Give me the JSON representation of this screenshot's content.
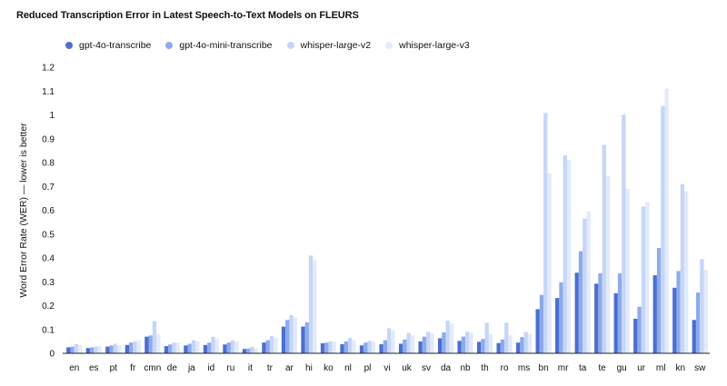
{
  "chart_data": {
    "type": "bar",
    "title": "Reduced Transcription Error in Latest Speech-to-Text Models on FLEURS",
    "xlabel": "",
    "ylabel": "Word Error Rate (WER) — lower is better",
    "ylim": [
      0,
      1.2
    ],
    "yticks": [
      "0",
      "0.1",
      "0.2",
      "0.3",
      "0.4",
      "0.5",
      "0.6",
      "0.7",
      "0.8",
      "0.9",
      "1",
      "1.1",
      "1.2"
    ],
    "grid": false,
    "legend": "top-left",
    "categories": [
      "en",
      "es",
      "pt",
      "fr",
      "cmn",
      "de",
      "ja",
      "id",
      "ru",
      "it",
      "tr",
      "ar",
      "hi",
      "ko",
      "nl",
      "pl",
      "vi",
      "uk",
      "sv",
      "da",
      "nb",
      "th",
      "ro",
      "ms",
      "bn",
      "mr",
      "ta",
      "te",
      "gu",
      "ur",
      "ml",
      "kn",
      "sw"
    ],
    "series": [
      {
        "name": "gpt-4o-transcribe",
        "color": "#4a6fcf",
        "values": [
          0.025,
          0.022,
          0.028,
          0.035,
          0.07,
          0.03,
          0.033,
          0.035,
          0.037,
          0.018,
          0.045,
          0.112,
          0.112,
          0.042,
          0.038,
          0.033,
          0.038,
          0.04,
          0.05,
          0.063,
          0.052,
          0.048,
          0.043,
          0.045,
          0.185,
          0.232,
          0.338,
          0.292,
          0.252,
          0.145,
          0.327,
          0.275,
          0.14
        ]
      },
      {
        "name": "gpt-4o-mini-transcribe",
        "color": "#8eaaee",
        "values": [
          0.028,
          0.025,
          0.033,
          0.045,
          0.075,
          0.037,
          0.04,
          0.045,
          0.045,
          0.02,
          0.055,
          0.14,
          0.13,
          0.045,
          0.05,
          0.045,
          0.055,
          0.058,
          0.07,
          0.088,
          0.07,
          0.06,
          0.058,
          0.068,
          0.245,
          0.298,
          0.428,
          0.336,
          0.335,
          0.195,
          0.442,
          0.345,
          0.255
        ]
      },
      {
        "name": "whisper-large-v2",
        "color": "#c6d6f7",
        "values": [
          0.038,
          0.028,
          0.04,
          0.05,
          0.135,
          0.045,
          0.055,
          0.07,
          0.055,
          0.027,
          0.072,
          0.16,
          0.41,
          0.05,
          0.065,
          0.052,
          0.105,
          0.085,
          0.09,
          0.137,
          0.09,
          0.128,
          0.128,
          0.09,
          1.008,
          0.831,
          0.565,
          0.874,
          1.001,
          0.615,
          1.038,
          0.71,
          0.395
        ]
      },
      {
        "name": "whisper-large-v3",
        "color": "#e2eafb",
        "values": [
          0.035,
          0.03,
          0.035,
          0.055,
          0.08,
          0.045,
          0.05,
          0.06,
          0.05,
          0.02,
          0.065,
          0.15,
          0.39,
          0.048,
          0.055,
          0.05,
          0.095,
          0.075,
          0.085,
          0.125,
          0.085,
          0.08,
          0.075,
          0.082,
          0.755,
          0.81,
          0.595,
          0.745,
          0.69,
          0.635,
          1.11,
          0.68,
          0.35
        ]
      }
    ]
  }
}
